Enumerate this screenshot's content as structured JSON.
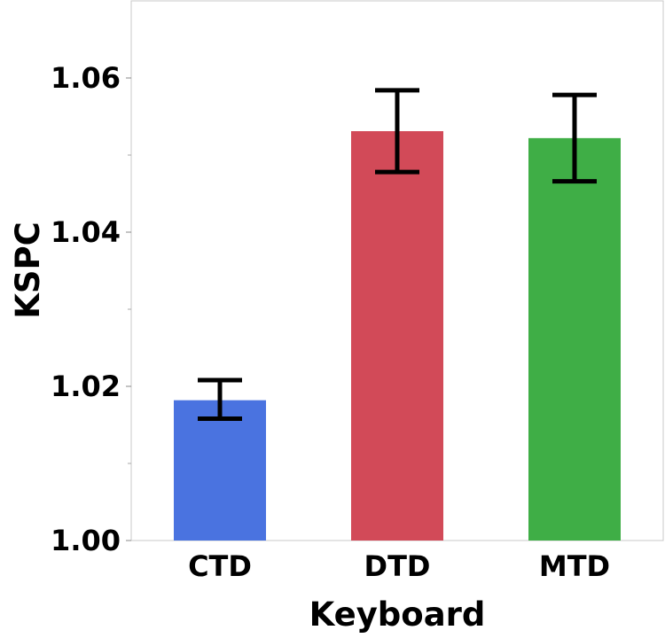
{
  "chart_data": {
    "type": "bar",
    "title": "",
    "xlabel": "Keyboard",
    "ylabel": "KSPC",
    "ylim": [
      1.0,
      1.07
    ],
    "yticks": [
      "1.00",
      "1.02",
      "1.04",
      "1.06"
    ],
    "grid": false,
    "categories": [
      "CTD",
      "DTD",
      "MTD"
    ],
    "values": [
      1.0182,
      1.0531,
      1.0522
    ],
    "error_low": [
      1.0158,
      1.0478,
      1.0466
    ],
    "error_high": [
      1.0208,
      1.0584,
      1.0578
    ],
    "colors": [
      "#4a73e0",
      "#d24a58",
      "#3fae46"
    ]
  }
}
